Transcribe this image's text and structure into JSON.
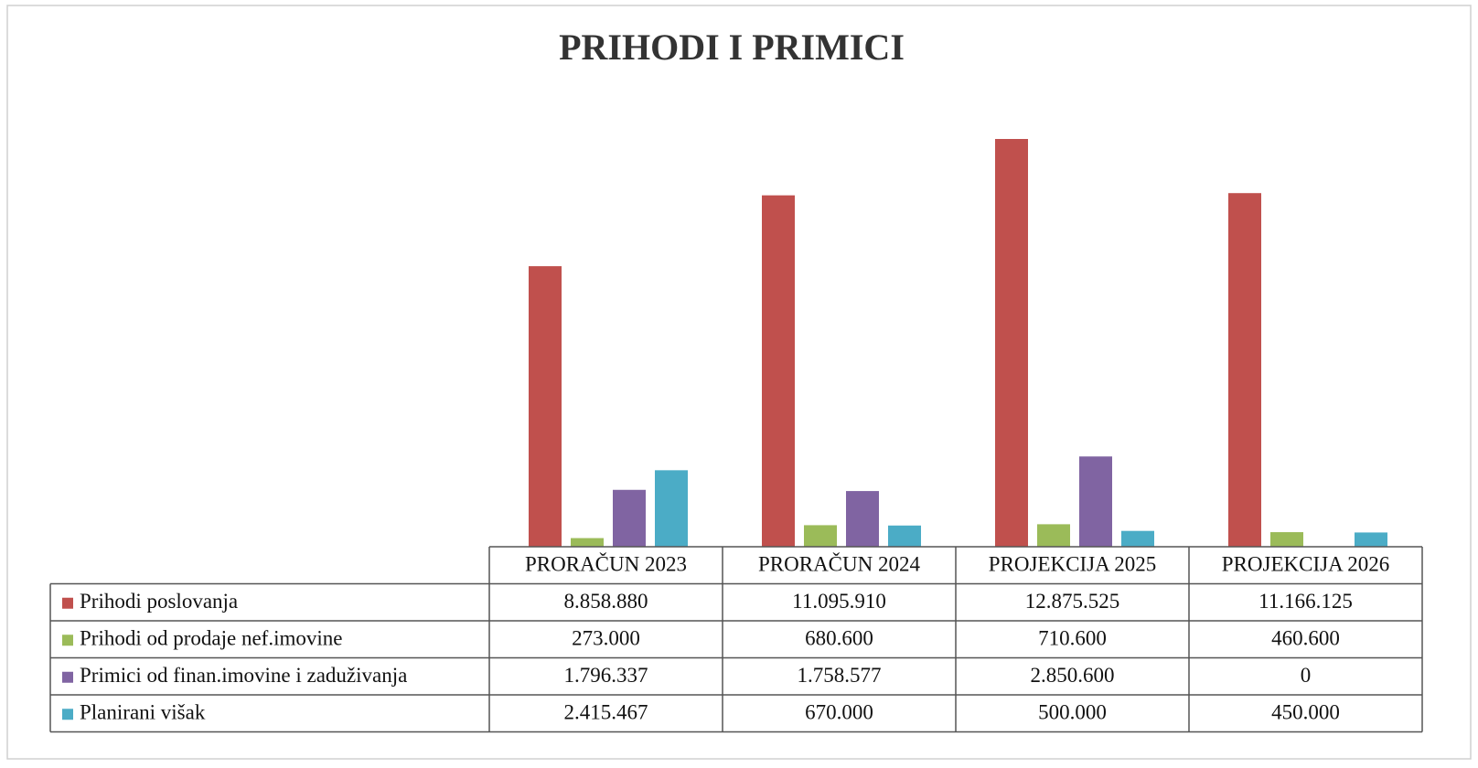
{
  "chart_data": {
    "type": "bar",
    "title": "PRIHODI I PRIMICI",
    "categories": [
      "PRORAČUN 2023",
      "PRORAČUN 2024",
      "PROJEKCIJA 2025",
      "PROJEKCIJA 2026"
    ],
    "series": [
      {
        "name": "Prihodi poslovanja",
        "color": "#c0504d",
        "values": [
          8858880,
          11095910,
          12875525,
          11166125
        ],
        "value_labels": [
          "8.858.880",
          "11.095.910",
          "12.875.525",
          "11.166.125"
        ]
      },
      {
        "name": "Prihodi od prodaje nef.imovine",
        "color": "#9bbb59",
        "values": [
          273000,
          680600,
          710600,
          460600
        ],
        "value_labels": [
          "273.000",
          "680.600",
          "710.600",
          "460.600"
        ]
      },
      {
        "name": "Primici od finan.imovine i zaduživanja",
        "color": "#8064a2",
        "values": [
          1796337,
          1758577,
          2850600,
          0
        ],
        "value_labels": [
          "1.796.337",
          "1.758.577",
          "2.850.600",
          "0"
        ]
      },
      {
        "name": "Planirani višak",
        "color": "#4bacc6",
        "values": [
          2415467,
          670000,
          500000,
          450000
        ],
        "value_labels": [
          "2.415.467",
          "670.000",
          "500.000",
          "450.000"
        ]
      }
    ]
  }
}
